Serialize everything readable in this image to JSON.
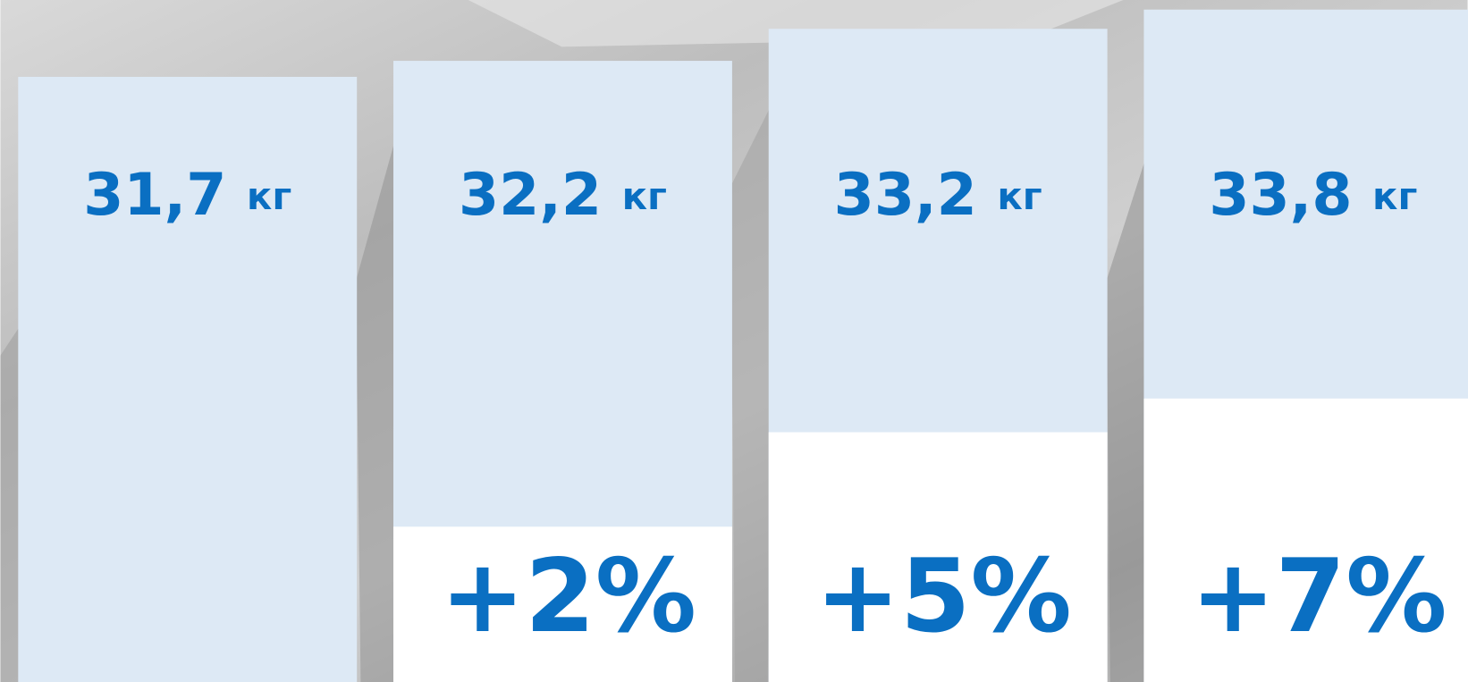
{
  "chart_data": {
    "type": "bar",
    "values": [
      31.7,
      32.2,
      33.2,
      33.8
    ],
    "value_labels": [
      "31,7 кг",
      "32,2 кг",
      "33,2 кг",
      "33,8 кг"
    ],
    "change_values": [
      null,
      2,
      5,
      7
    ],
    "change_labels": [
      null,
      "+2%",
      "+5%",
      "+7%"
    ],
    "color": "#dde9f5",
    "label_color": "#0a6fc2",
    "ylim": [
      12.8,
      34.1
    ]
  }
}
